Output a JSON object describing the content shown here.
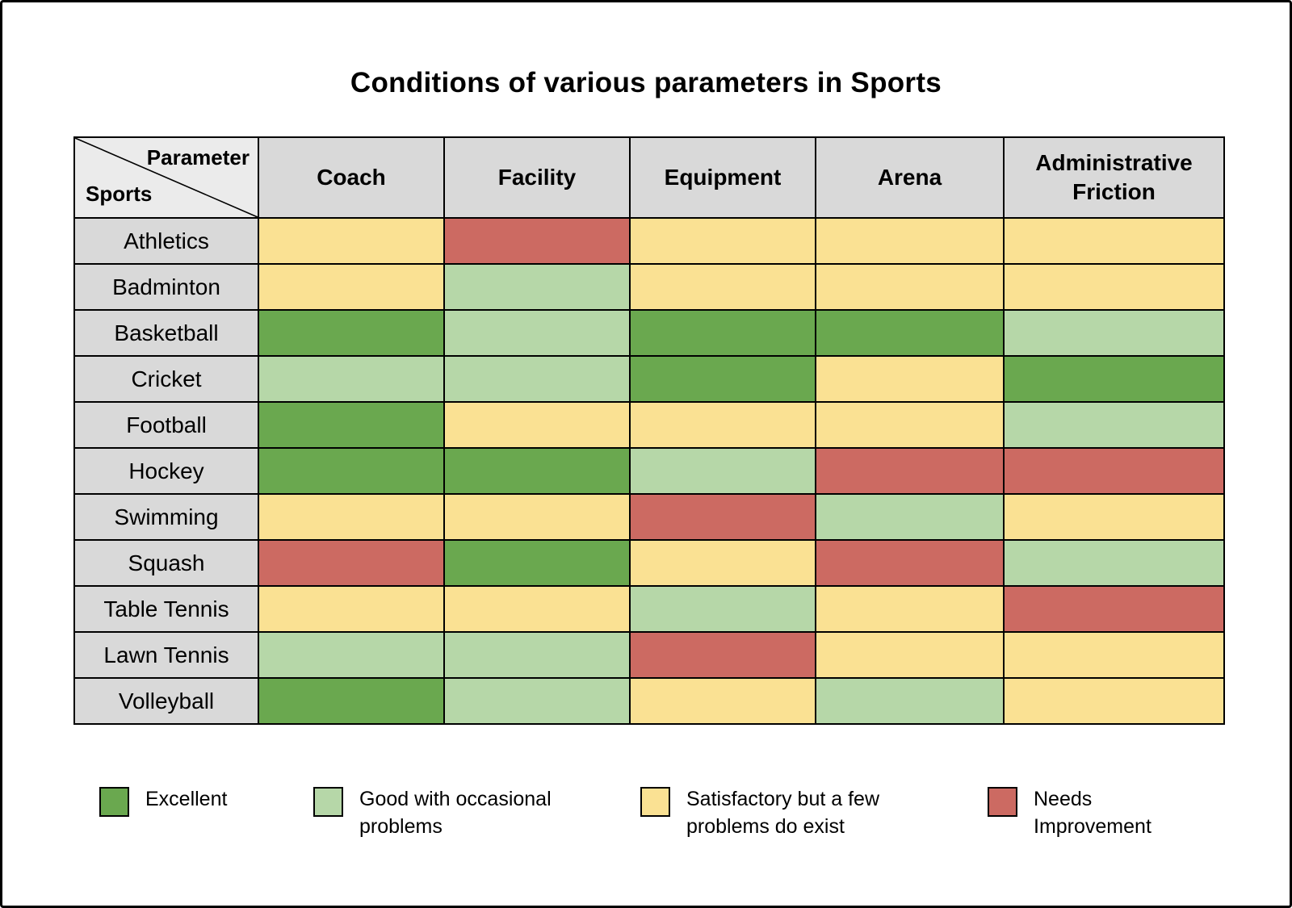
{
  "title": "Conditions of various parameters in Sports",
  "table": {
    "corner": {
      "parameter_label": "Parameter",
      "sports_label": "Sports"
    },
    "columns": [
      "Coach",
      "Facility",
      "Equipment",
      "Arena",
      "Administrative Friction"
    ],
    "rows": [
      {
        "sport": "Athletics",
        "values": [
          "satisfactory",
          "needs_improvement",
          "satisfactory",
          "satisfactory",
          "satisfactory"
        ]
      },
      {
        "sport": "Badminton",
        "values": [
          "satisfactory",
          "good",
          "satisfactory",
          "satisfactory",
          "satisfactory"
        ]
      },
      {
        "sport": "Basketball",
        "values": [
          "excellent",
          "good",
          "excellent",
          "excellent",
          "good"
        ]
      },
      {
        "sport": "Cricket",
        "values": [
          "good",
          "good",
          "excellent",
          "satisfactory",
          "excellent"
        ]
      },
      {
        "sport": "Football",
        "values": [
          "excellent",
          "satisfactory",
          "satisfactory",
          "satisfactory",
          "good"
        ]
      },
      {
        "sport": "Hockey",
        "values": [
          "excellent",
          "excellent",
          "good",
          "needs_improvement",
          "needs_improvement"
        ]
      },
      {
        "sport": "Swimming",
        "values": [
          "satisfactory",
          "satisfactory",
          "needs_improvement",
          "good",
          "satisfactory"
        ]
      },
      {
        "sport": "Squash",
        "values": [
          "needs_improvement",
          "excellent",
          "satisfactory",
          "needs_improvement",
          "good"
        ]
      },
      {
        "sport": "Table Tennis",
        "values": [
          "satisfactory",
          "satisfactory",
          "good",
          "satisfactory",
          "needs_improvement"
        ]
      },
      {
        "sport": "Lawn Tennis",
        "values": [
          "good",
          "good",
          "needs_improvement",
          "satisfactory",
          "satisfactory"
        ]
      },
      {
        "sport": "Volleyball",
        "values": [
          "excellent",
          "good",
          "satisfactory",
          "good",
          "satisfactory"
        ]
      }
    ]
  },
  "legend": [
    {
      "key": "excellent",
      "label": "Excellent"
    },
    {
      "key": "good",
      "label": "Good with occasional problems"
    },
    {
      "key": "satisfactory",
      "label": "Satisfactory but a few problems do exist"
    },
    {
      "key": "needs_improvement",
      "label": "Needs Improvement"
    }
  ],
  "colors": {
    "excellent": "#6aa84f",
    "good": "#b6d7a8",
    "satisfactory": "#fae193",
    "needs_improvement": "#cc6a62",
    "header_bg": "#d9d9d9",
    "corner_bg": "#ebebeb",
    "border": "#000000"
  },
  "chart_data": {
    "type": "heatmap",
    "title": "Conditions of various parameters in Sports",
    "x_categories": [
      "Coach",
      "Facility",
      "Equipment",
      "Arena",
      "Administrative Friction"
    ],
    "y_categories": [
      "Athletics",
      "Badminton",
      "Basketball",
      "Cricket",
      "Football",
      "Hockey",
      "Swimming",
      "Squash",
      "Table Tennis",
      "Lawn Tennis",
      "Volleyball"
    ],
    "values": [
      [
        "satisfactory",
        "needs_improvement",
        "satisfactory",
        "satisfactory",
        "satisfactory"
      ],
      [
        "satisfactory",
        "good",
        "satisfactory",
        "satisfactory",
        "satisfactory"
      ],
      [
        "excellent",
        "good",
        "excellent",
        "excellent",
        "good"
      ],
      [
        "good",
        "good",
        "excellent",
        "satisfactory",
        "excellent"
      ],
      [
        "excellent",
        "satisfactory",
        "satisfactory",
        "satisfactory",
        "good"
      ],
      [
        "excellent",
        "excellent",
        "good",
        "needs_improvement",
        "needs_improvement"
      ],
      [
        "satisfactory",
        "satisfactory",
        "needs_improvement",
        "good",
        "satisfactory"
      ],
      [
        "needs_improvement",
        "excellent",
        "satisfactory",
        "needs_improvement",
        "good"
      ],
      [
        "satisfactory",
        "satisfactory",
        "good",
        "satisfactory",
        "needs_improvement"
      ],
      [
        "good",
        "good",
        "needs_improvement",
        "satisfactory",
        "satisfactory"
      ],
      [
        "excellent",
        "good",
        "satisfactory",
        "good",
        "satisfactory"
      ]
    ],
    "value_legend": {
      "excellent": "Excellent",
      "good": "Good with occasional problems",
      "satisfactory": "Satisfactory but a few problems do exist",
      "needs_improvement": "Needs Improvement"
    },
    "legend_position": "bottom",
    "grid": true
  }
}
